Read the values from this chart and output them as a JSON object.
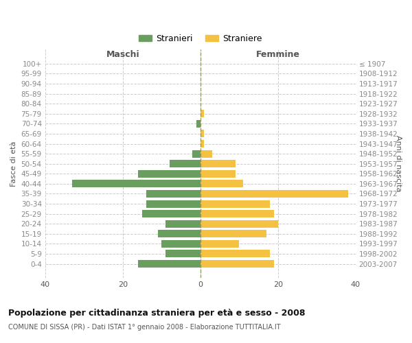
{
  "age_groups": [
    "100+",
    "95-99",
    "90-94",
    "85-89",
    "80-84",
    "75-79",
    "70-74",
    "65-69",
    "60-64",
    "55-59",
    "50-54",
    "45-49",
    "40-44",
    "35-39",
    "30-34",
    "25-29",
    "20-24",
    "15-19",
    "10-14",
    "5-9",
    "0-4"
  ],
  "birth_years": [
    "≤ 1907",
    "1908-1912",
    "1913-1917",
    "1918-1922",
    "1923-1927",
    "1928-1932",
    "1933-1937",
    "1938-1942",
    "1943-1947",
    "1948-1952",
    "1953-1957",
    "1958-1962",
    "1963-1967",
    "1968-1972",
    "1973-1977",
    "1978-1982",
    "1983-1987",
    "1988-1992",
    "1993-1997",
    "1998-2002",
    "2003-2007"
  ],
  "males": [
    0,
    0,
    0,
    0,
    0,
    0,
    1,
    0,
    0,
    2,
    8,
    16,
    33,
    14,
    14,
    15,
    9,
    11,
    10,
    9,
    16
  ],
  "females": [
    0,
    0,
    0,
    0,
    0,
    1,
    0,
    1,
    1,
    3,
    9,
    9,
    11,
    38,
    18,
    19,
    20,
    17,
    10,
    18,
    19
  ],
  "male_color": "#6a9e5e",
  "female_color": "#f5c142",
  "grid_color": "#cccccc",
  "center_line_color": "#999966",
  "title": "Popolazione per cittadinanza straniera per età e sesso - 2008",
  "subtitle": "COMUNE DI SISSA (PR) - Dati ISTAT 1° gennaio 2008 - Elaborazione TUTTITALIA.IT",
  "label_maschi": "Maschi",
  "label_femmine": "Femmine",
  "ylabel_left": "Fasce di età",
  "ylabel_right": "Anni di nascita",
  "legend_male": "Stranieri",
  "legend_female": "Straniere",
  "xlim": 40,
  "bar_height": 0.75
}
